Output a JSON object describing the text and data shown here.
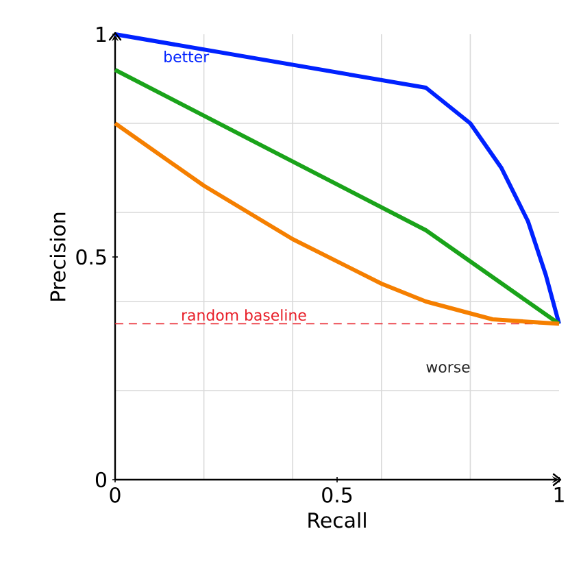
{
  "chart_data": {
    "type": "line",
    "xlabel": "Recall",
    "ylabel": "Precision",
    "xlim": [
      0,
      1
    ],
    "ylim": [
      0,
      1
    ],
    "xticks": [
      0,
      {
        "value": 0.2,
        "label": null
      },
      {
        "value": 0.4,
        "label": null
      },
      0.5,
      {
        "value": 0.6,
        "label": null
      },
      {
        "value": 0.8,
        "label": null
      },
      1
    ],
    "yticks": [
      0,
      {
        "value": 0.2,
        "label": null
      },
      {
        "value": 0.4,
        "label": null
      },
      0.5,
      {
        "value": 0.6,
        "label": null
      },
      {
        "value": 0.8,
        "label": null
      },
      1
    ],
    "grid": true,
    "marker": "none",
    "line_style": "solid",
    "series": [
      {
        "color": "#0022ff",
        "x": [
          0,
          0.7,
          0.8,
          0.87,
          0.93,
          0.97,
          1
        ],
        "values": [
          1,
          0.88,
          0.8,
          0.7,
          0.58,
          0.46,
          0.35
        ]
      },
      {
        "color": "#1aa31a",
        "x": [
          0,
          0.7,
          1
        ],
        "values": [
          0.92,
          0.56,
          0.35
        ]
      },
      {
        "color": "#f57f00",
        "x": [
          0,
          0.2,
          0.4,
          0.6,
          0.7,
          0.85,
          1
        ],
        "values": [
          0.8,
          0.66,
          0.54,
          0.44,
          0.4,
          0.36,
          0.35
        ]
      }
    ],
    "ref_lines": [
      {
        "axis": "y",
        "value": 0.35,
        "label": "random baseline",
        "color": "#e8202a",
        "line_style": "dashed"
      }
    ],
    "annotations": [
      "better",
      "worse"
    ]
  }
}
